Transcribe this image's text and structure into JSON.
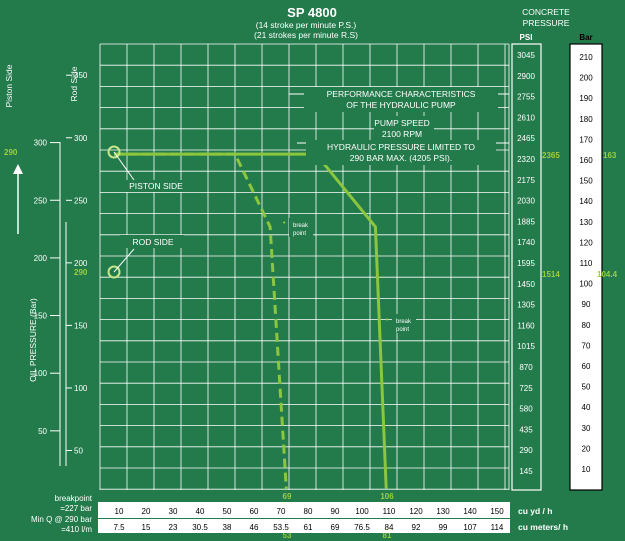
{
  "header": {
    "title": "SP 4800",
    "subtitle_1": "(14 stroke per minute P.S.)",
    "subtitle_2": "(21 strokes per minute R.S)",
    "concrete_label_1": "CONCRETE",
    "concrete_label_2": "PRESSURE",
    "psi_header": "PSI",
    "bar_header": "Bar"
  },
  "left_axis": {
    "piston_side_label": "Piston Side",
    "rod_side_label": "Rod Side",
    "oil_pressure_label": "OIL PRESSURE (Bar)",
    "piston_ticks": [
      "300",
      "250",
      "200",
      "150",
      "100",
      "50"
    ],
    "rod_ticks": [
      "350",
      "300",
      "250",
      "200",
      "150",
      "100",
      "50"
    ],
    "highlight_290_piston": "290",
    "highlight_290_rod": "290"
  },
  "annotations": {
    "performance_1": "PERFORMANCE CHARACTERISTICS",
    "performance_2": "OF THE HYDRAULIC PUMP",
    "pump_speed_1": "PUMP SPEED",
    "pump_speed_2": "2100 RPM",
    "hydraulic_1": "HYDRAULIC PRESSURE LIMITED TO",
    "hydraulic_2": "290 BAR MAX. (4205 PSI).",
    "piston_side": "PISTON SIDE",
    "rod_side": "ROD SIDE",
    "break_point_a": "break",
    "break_point_b": "point",
    "break_point_c": "break",
    "break_point_d": "point",
    "x_69": "69",
    "x_106": "106",
    "x_53": "53",
    "x_81": "81",
    "psi_2365": "2365",
    "bar_163": "163",
    "psi_1514": "1514",
    "bar_1044": "104.4"
  },
  "psi_scale": [
    "3045",
    "2900",
    "2755",
    "2610",
    "2465",
    "2320",
    "2175",
    "2030",
    "1885",
    "1740",
    "1595",
    "1450",
    "1305",
    "1160",
    "1015",
    "870",
    "725",
    "580",
    "435",
    "290",
    "145"
  ],
  "bar_scale": [
    "210",
    "200",
    "190",
    "180",
    "170",
    "160",
    "150",
    "140",
    "130",
    "120",
    "110",
    "100",
    "90",
    "80",
    "70",
    "60",
    "50",
    "40",
    "30",
    "20",
    "10"
  ],
  "footer": {
    "breakpoint_1": "breakpoint",
    "breakpoint_2": "=227 bar",
    "minq_1": "Min Q @ 290 bar",
    "minq_2": "=410 l/m",
    "cu_yd_label": "cu yd / h",
    "cu_m_label": "cu meters/ h",
    "cu_yd_values": [
      "10",
      "20",
      "30",
      "40",
      "50",
      "60",
      "70",
      "80",
      "90",
      "100",
      "110",
      "120",
      "130",
      "140",
      "150"
    ],
    "cu_m_values": [
      "7.5",
      "15",
      "23",
      "30.5",
      "38",
      "46",
      "53.5",
      "61",
      "69",
      "76.5",
      "84",
      "92",
      "99",
      "107",
      "114"
    ]
  },
  "colors": {
    "background": "#237a4b",
    "curve": "#8cc63f",
    "grid": "#ffffff"
  },
  "chart_data": {
    "type": "line",
    "title": "SP 4800",
    "xlabel": "cu yd / h",
    "ylabel": "OIL PRESSURE (Bar)",
    "xlim": [
      0,
      150
    ],
    "series": [
      {
        "name": "PISTON SIDE",
        "style": "dashed",
        "x": [
          0,
          50,
          63,
          69
        ],
        "y": [
          290,
          290,
          227,
          0
        ]
      },
      {
        "name": "ROD SIDE",
        "style": "solid",
        "x": [
          0,
          80,
          102,
          106
        ],
        "y": [
          290,
          290,
          227,
          0
        ]
      }
    ]
  }
}
